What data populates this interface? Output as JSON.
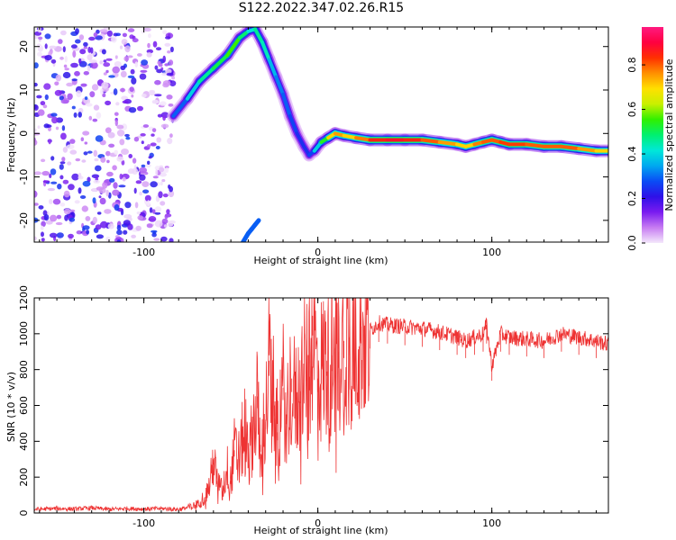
{
  "title": "S122.2022.347.02.26.R15",
  "chart_data": [
    {
      "type": "heatmap",
      "xlabel": "Height of straight line (km)",
      "ylabel": "Frequency (Hz)",
      "xlim": [
        -163,
        167
      ],
      "ylim": [
        -25,
        24.5
      ],
      "xticks": [
        -100,
        0,
        100
      ],
      "yticks": [
        -20,
        -10,
        0,
        10,
        20
      ],
      "grid": false,
      "colorbar": {
        "label": "Normalized spectral amplitude",
        "range": [
          0.0,
          0.97
        ],
        "ticks": [
          0.0,
          0.2,
          0.4,
          0.6,
          0.8
        ],
        "colors": [
          "#f4e8fb",
          "#c77cf2",
          "#7a1bf0",
          "#2e10e8",
          "#0a4cf5",
          "#00a8f0",
          "#00e8d8",
          "#00f070",
          "#30f000",
          "#c8f000",
          "#ffe000",
          "#ff9000",
          "#ff3000",
          "#ff0040",
          "#ff1a80"
        ]
      },
      "noise_region_x": [
        -163,
        -83
      ],
      "signal_trace": {
        "x": [
          -83,
          -75,
          -68,
          -60,
          -52,
          -45,
          -40,
          -36,
          -32,
          -28,
          -24,
          -20,
          -16,
          -12,
          -8,
          -5,
          -2,
          2,
          6,
          10,
          15,
          22,
          30,
          40,
          50,
          60,
          70,
          80,
          85,
          90,
          95,
          100,
          105,
          110,
          120,
          130,
          140,
          150,
          160,
          167
        ],
        "y": [
          4,
          8,
          12,
          15,
          18,
          22,
          23.5,
          24,
          21,
          17,
          13,
          9,
          4,
          0,
          -3,
          -5,
          -4,
          -2,
          -1,
          0,
          -0.5,
          -1,
          -1.5,
          -1.5,
          -1.5,
          -1.5,
          -2,
          -2.5,
          -3,
          -2.5,
          -2,
          -1.5,
          -2,
          -2.5,
          -2.5,
          -3,
          -3,
          -3.5,
          -4,
          -4
        ],
        "amplitude": [
          0.25,
          0.35,
          0.45,
          0.5,
          0.55,
          0.6,
          0.4,
          0.45,
          0.5,
          0.4,
          0.35,
          0.3,
          0.3,
          0.25,
          0.25,
          0.25,
          0.3,
          0.5,
          0.6,
          0.85,
          0.7,
          0.75,
          0.85,
          0.9,
          0.9,
          0.85,
          0.8,
          0.75,
          0.7,
          0.75,
          0.85,
          0.8,
          0.85,
          0.85,
          0.85,
          0.8,
          0.85,
          0.8,
          0.75,
          0.7
        ]
      },
      "secondary_trace": {
        "x": [
          -43,
          -40,
          -38,
          -36,
          -34
        ],
        "y": [
          -25,
          -23,
          -22,
          -21,
          -20
        ]
      }
    },
    {
      "type": "line",
      "xlabel": "Height of straight line (km)",
      "ylabel": "SNR (10 * v/v)",
      "xlim": [
        -163,
        167
      ],
      "ylim": [
        0,
        1200
      ],
      "xticks": [
        -100,
        0,
        100
      ],
      "yticks": [
        0,
        200,
        400,
        600,
        800,
        1000,
        1200
      ],
      "grid": false,
      "series": [
        {
          "color": "#ee3333",
          "x": [
            -163,
            -150,
            -140,
            -130,
            -120,
            -110,
            -100,
            -90,
            -80,
            -75,
            -70,
            -65,
            -62,
            -60,
            -58,
            -55,
            -52,
            -50,
            -48,
            -45,
            -42,
            -40,
            -38,
            -35,
            -33,
            -30,
            -28,
            -25,
            -23,
            -20,
            -18,
            -15,
            -13,
            -10,
            -8,
            -5,
            -3,
            0,
            2,
            5,
            8,
            10,
            12,
            15,
            18,
            20,
            25,
            30,
            35,
            40,
            50,
            60,
            70,
            80,
            85,
            90,
            95,
            97,
            100,
            105,
            110,
            120,
            130,
            140,
            150,
            160,
            167
          ],
          "y": [
            20,
            25,
            22,
            28,
            20,
            25,
            22,
            25,
            20,
            30,
            45,
            90,
            160,
            300,
            180,
            120,
            250,
            180,
            350,
            300,
            500,
            280,
            420,
            650,
            380,
            520,
            850,
            600,
            450,
            700,
            550,
            750,
            620,
            680,
            820,
            760,
            1100,
            750,
            800,
            850,
            880,
            920,
            900,
            960,
            980,
            1000,
            1040,
            1020,
            1060,
            1050,
            1040,
            1030,
            1010,
            980,
            960,
            980,
            1000,
            1050,
            820,
            1000,
            980,
            970,
            960,
            1000,
            980,
            960,
            940
          ]
        }
      ]
    }
  ]
}
